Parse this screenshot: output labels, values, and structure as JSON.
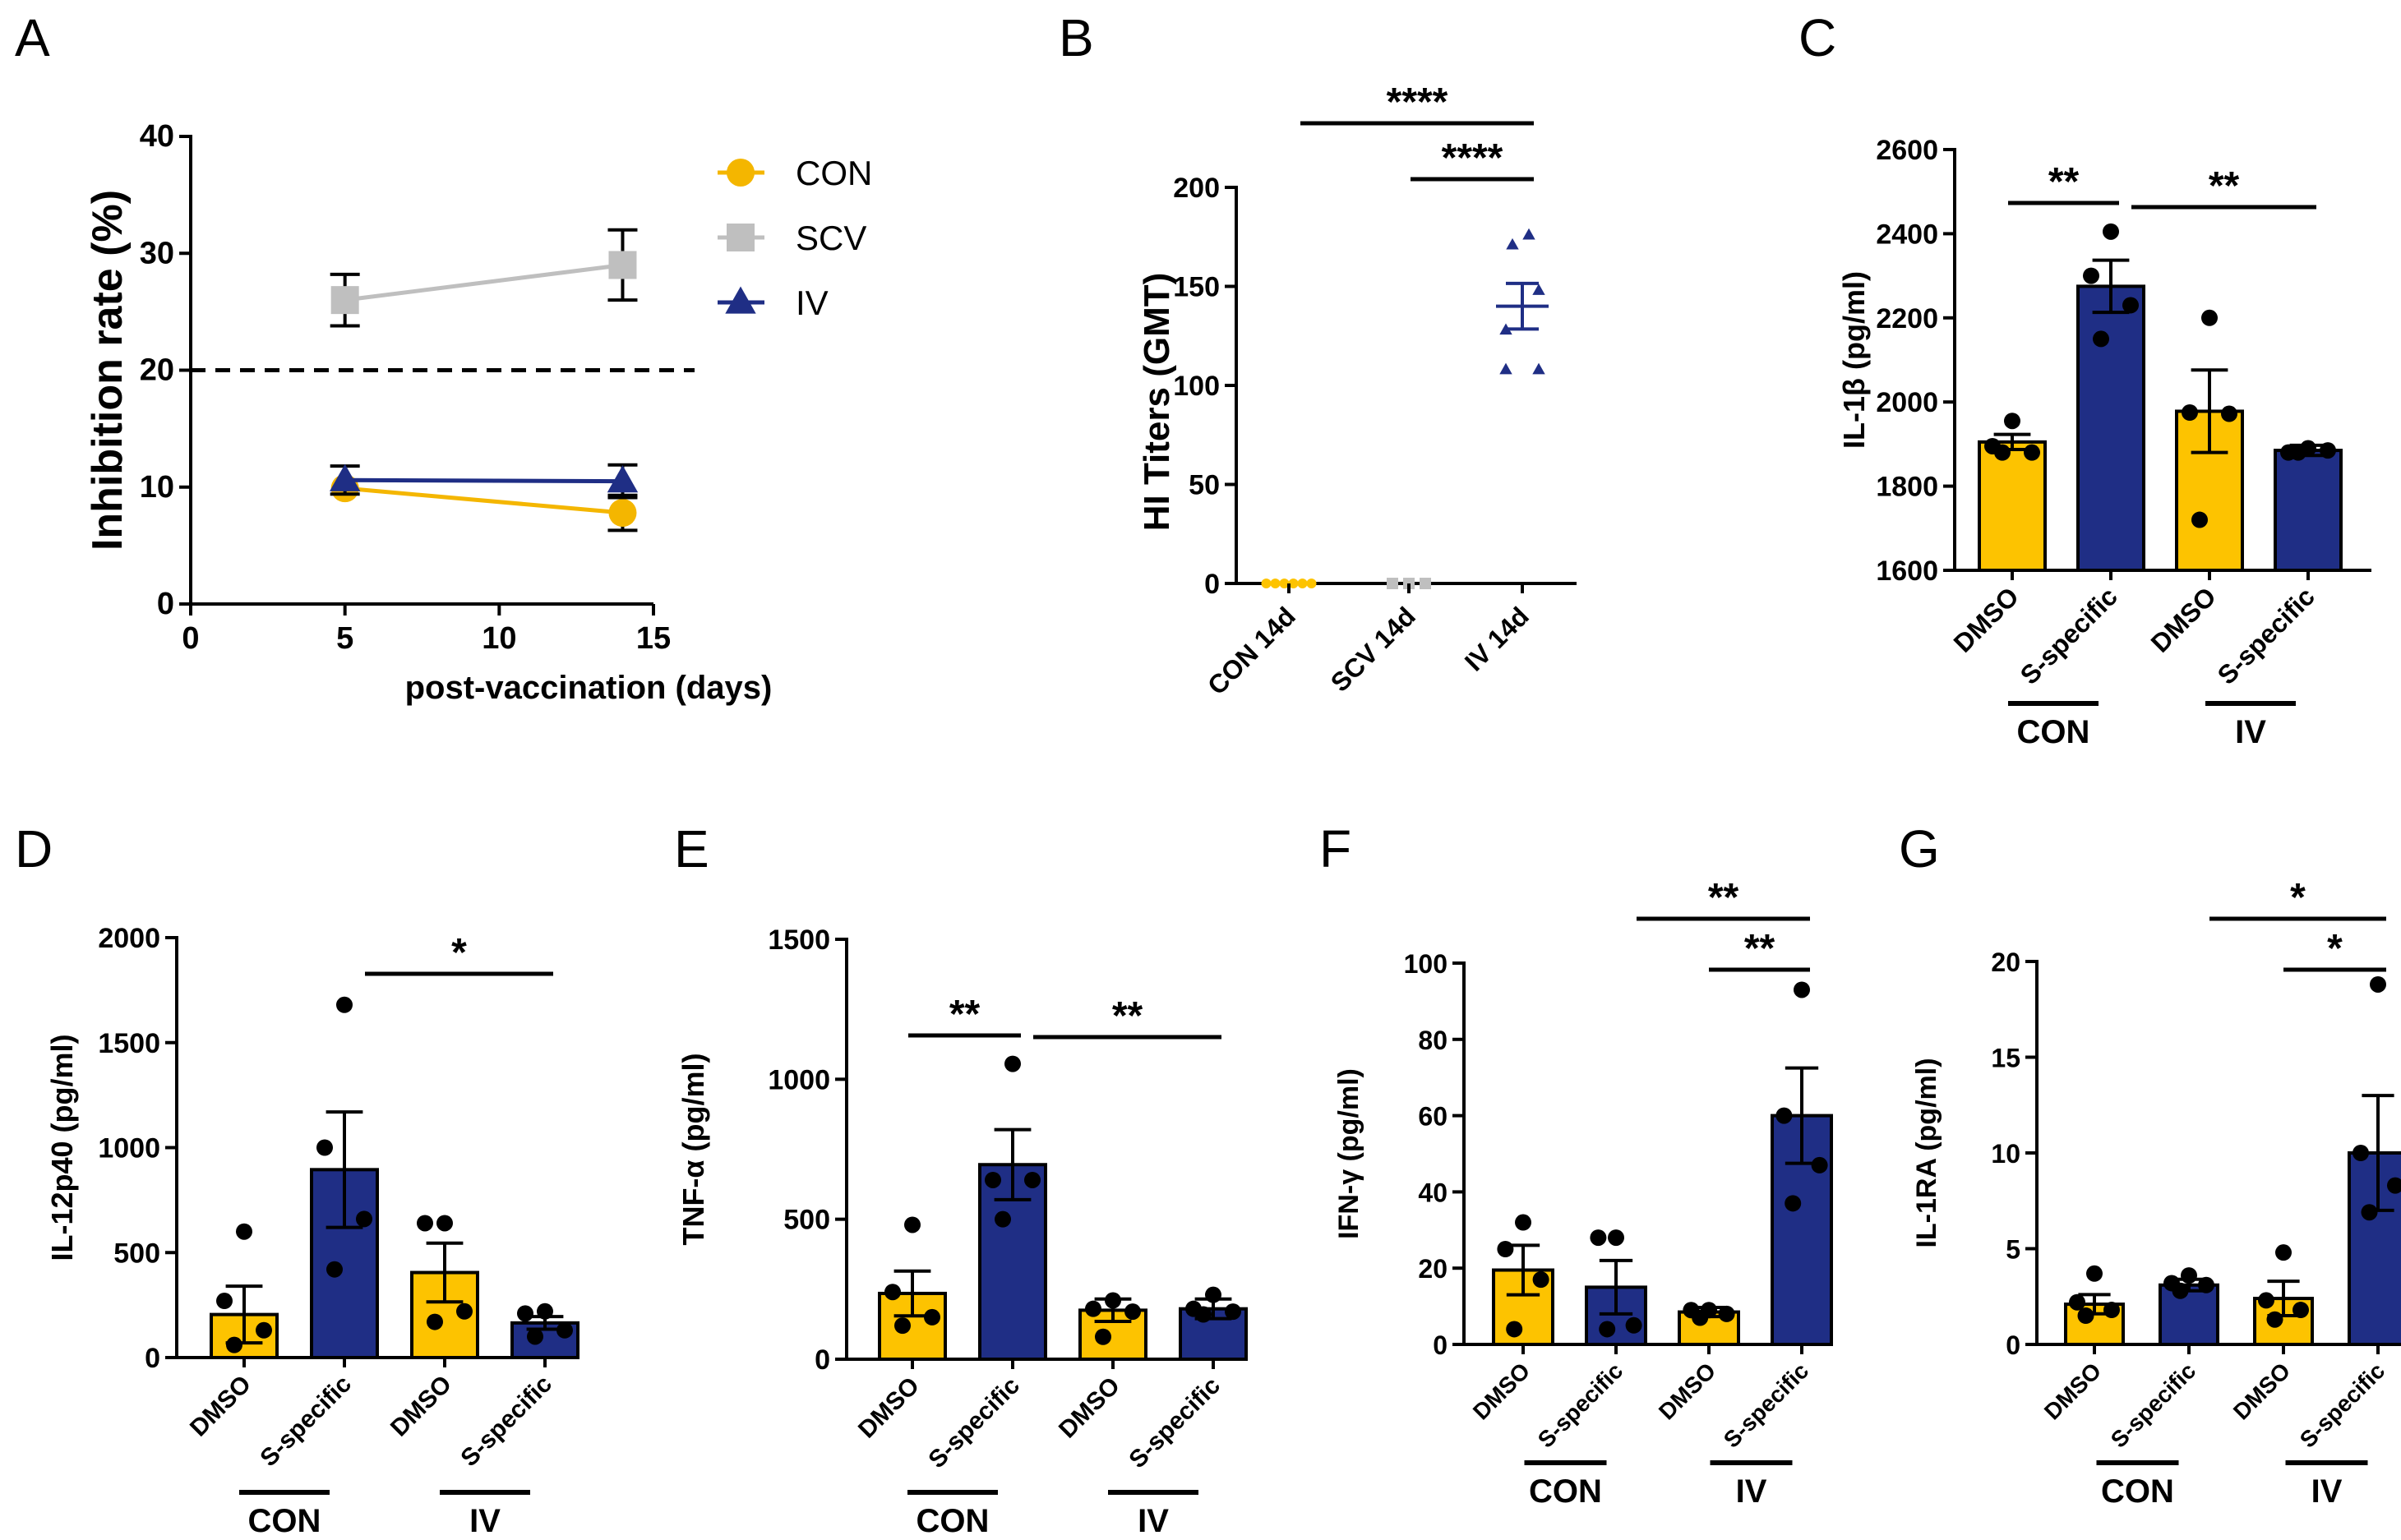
{
  "colors": {
    "con": "#FDC300",
    "iv": "#1F2E85",
    "scv": "#BFBFBF",
    "line_con": "#F4B600",
    "line_scv": "#BFBFBF",
    "line_iv": "#1F2E85",
    "black": "#000000"
  },
  "chart_data": [
    {
      "id": "A",
      "label": "A",
      "type": "line",
      "xlabel": "post-vaccination (days)",
      "ylabel": "Inhibition rate  (%)",
      "xlim": [
        0,
        15
      ],
      "ylim": [
        0,
        40
      ],
      "xticks": [
        "0",
        "5",
        "10",
        "15"
      ],
      "yticks": [
        "0",
        "10",
        "20",
        "30",
        "40"
      ],
      "reference_line": 20,
      "series": [
        {
          "name": "CON",
          "color": "#F4B600",
          "marker": "circle",
          "x": [
            5,
            14
          ],
          "y": [
            9.9,
            7.8
          ],
          "err": [
            0,
            1.5
          ]
        },
        {
          "name": "SCV",
          "color": "#BFBFBF",
          "marker": "square",
          "x": [
            5,
            14
          ],
          "y": [
            26,
            29
          ],
          "err": [
            2.2,
            3
          ]
        },
        {
          "name": "IV",
          "color": "#1F2E85",
          "marker": "triangle",
          "x": [
            5,
            14
          ],
          "y": [
            10.6,
            10.5
          ],
          "err": [
            1.2,
            1.4
          ]
        }
      ]
    },
    {
      "id": "B",
      "label": "B",
      "type": "scatter",
      "ylabel": "HI Titers (GMT)",
      "ylim": [
        0,
        200
      ],
      "yticks": [
        "0",
        "50",
        "100",
        "150",
        "200"
      ],
      "categories": [
        "CON 14d",
        "SCV 14d",
        "IV 14d"
      ],
      "groups": [
        {
          "name": "CON 14d",
          "color": "#FDC300",
          "marker": "circle",
          "values": [
            0,
            0,
            0,
            0,
            0,
            0
          ],
          "mean": 0,
          "sem": 0
        },
        {
          "name": "SCV 14d",
          "color": "#BFBFBF",
          "marker": "square",
          "values": [
            0,
            0,
            0
          ],
          "mean": 0,
          "sem": 0
        },
        {
          "name": "IV 14d",
          "color": "#1F2E85",
          "marker": "triangle",
          "values": [
            176,
            171,
            148,
            128,
            108,
            108
          ],
          "mean": 140,
          "sem": 11.5
        }
      ],
      "significance": [
        {
          "from": 0,
          "to": 2,
          "label": "****"
        },
        {
          "from": 1,
          "to": 2,
          "label": "****"
        }
      ]
    },
    {
      "id": "C",
      "label": "C",
      "type": "bar",
      "ylabel": "IL-1β (pg/ml)",
      "ylim": [
        1600,
        2600
      ],
      "yticks": [
        "1600",
        "1800",
        "2000",
        "2200",
        "2400",
        "2600"
      ],
      "categories": [
        "DMSO",
        "S-specific",
        "DMSO",
        "S-specific"
      ],
      "groups": [
        "CON",
        "IV"
      ],
      "bar_colors": [
        "#FDC300",
        "#1F2E85",
        "#FDC300",
        "#1F2E85"
      ],
      "values": [
        1905,
        2275,
        1978,
        1885
      ],
      "sem": [
        18,
        62,
        98,
        12
      ],
      "points": [
        [
          1955,
          1895,
          1880,
          1880
        ],
        [
          2405,
          2300,
          2230,
          2150
        ],
        [
          2200,
          1975,
          1972,
          1720
        ],
        [
          1890,
          1880,
          1885,
          1880
        ]
      ],
      "significance": [
        {
          "from": 0,
          "to": 1,
          "label": "**"
        },
        {
          "from": 1,
          "to": 3,
          "label": "**"
        }
      ]
    },
    {
      "id": "D",
      "label": "D",
      "type": "bar",
      "ylabel": "IL-12p40 (pg/ml)",
      "ylim": [
        0,
        2000
      ],
      "yticks": [
        "0",
        "500",
        "1000",
        "1500",
        "2000"
      ],
      "categories": [
        "DMSO",
        "S-specific",
        "DMSO",
        "S-specific"
      ],
      "groups": [
        "CON",
        "IV"
      ],
      "bar_colors": [
        "#FDC300",
        "#1F2E85",
        "#FDC300",
        "#1F2E85"
      ],
      "values": [
        205,
        895,
        405,
        165
      ],
      "sem": [
        135,
        275,
        140,
        30
      ],
      "points": [
        [
          600,
          270,
          130,
          60
        ],
        [
          1680,
          1000,
          660,
          420
        ],
        [
          640,
          640,
          220,
          170
        ],
        [
          220,
          210,
          130,
          100
        ]
      ],
      "significance": [
        {
          "from": 1,
          "to": 3,
          "label": "*"
        }
      ]
    },
    {
      "id": "E",
      "label": "E",
      "type": "bar",
      "ylabel": "TNF-α (pg/ml)",
      "ylim": [
        0,
        1500
      ],
      "yticks": [
        "0",
        "500",
        "1000",
        "1500"
      ],
      "categories": [
        "DMSO",
        "S-specific",
        "DMSO",
        "S-specific"
      ],
      "groups": [
        "CON",
        "IV"
      ],
      "bar_colors": [
        "#FDC300",
        "#1F2E85",
        "#FDC300",
        "#1F2E85"
      ],
      "values": [
        235,
        695,
        175,
        180
      ],
      "sem": [
        80,
        125,
        40,
        35
      ],
      "points": [
        [
          480,
          240,
          150,
          120
        ],
        [
          1055,
          640,
          640,
          500
        ],
        [
          210,
          180,
          170,
          80
        ],
        [
          230,
          180,
          170,
          160
        ]
      ],
      "significance": [
        {
          "from": 0,
          "to": 1,
          "label": "**"
        },
        {
          "from": 1,
          "to": 3,
          "label": "**"
        }
      ]
    },
    {
      "id": "F",
      "label": "F",
      "type": "bar",
      "ylabel": "IFN-γ (pg/ml)",
      "ylim": [
        0,
        100
      ],
      "yticks": [
        "0",
        "20",
        "40",
        "60",
        "80",
        "100"
      ],
      "categories": [
        "DMSO",
        "S-specific",
        "DMSO",
        "S-specific"
      ],
      "groups": [
        "CON",
        "IV"
      ],
      "bar_colors": [
        "#FDC300",
        "#1F2E85",
        "#FDC300",
        "#1F2E85"
      ],
      "values": [
        19.5,
        15,
        8.5,
        60
      ],
      "sem": [
        6.5,
        7,
        1.2,
        12.5
      ],
      "points": [
        [
          32,
          25,
          17,
          4
        ],
        [
          28,
          28,
          5,
          4
        ],
        [
          9,
          9,
          8,
          7
        ],
        [
          93,
          60,
          47,
          37
        ]
      ],
      "significance": [
        {
          "from": 1,
          "to": 3,
          "label": "**"
        },
        {
          "from": 2,
          "to": 3,
          "label": "**"
        }
      ]
    },
    {
      "id": "G",
      "label": "G",
      "type": "bar",
      "ylabel": "IL-1RA (pg/ml)",
      "ylim": [
        0,
        20
      ],
      "yticks": [
        "0",
        "5",
        "10",
        "15",
        "20"
      ],
      "categories": [
        "DMSO",
        "S-specific",
        "DMSO",
        "S-specific"
      ],
      "groups": [
        "CON",
        "IV"
      ],
      "bar_colors": [
        "#FDC300",
        "#1F2E85",
        "#FDC300",
        "#1F2E85"
      ],
      "values": [
        2.1,
        3.1,
        2.4,
        10
      ],
      "sem": [
        0.5,
        0.3,
        0.9,
        3
      ],
      "points": [
        [
          3.7,
          2.2,
          1.8,
          1.5
        ],
        [
          3.6,
          3.2,
          3.1,
          2.8
        ],
        [
          4.8,
          2.3,
          1.8,
          1.3
        ],
        [
          18.8,
          10,
          8.3,
          6.9
        ]
      ],
      "significance": [
        {
          "from": 1,
          "to": 3,
          "label": "*"
        },
        {
          "from": 2,
          "to": 3,
          "label": "*"
        }
      ]
    }
  ]
}
